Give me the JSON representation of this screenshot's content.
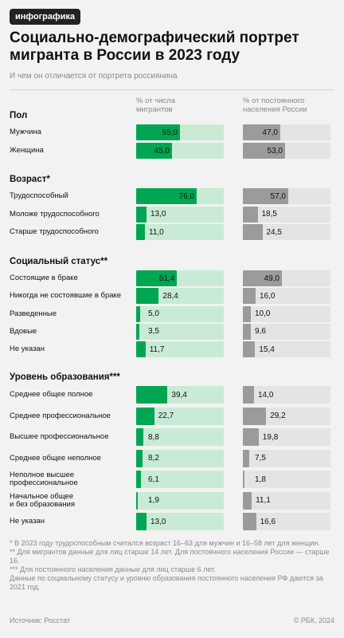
{
  "badge": "инфографика",
  "title": "Социально-демографический портрет мигранта в России в 2023 году",
  "subtitle": "И чем он отличается от портрета россиянина",
  "columns": [
    {
      "name": "% от числа мигрантов",
      "color": "#00a651",
      "background": "#c9ebd6"
    },
    {
      "name": "% от постоянного населения России",
      "color": "#9b9b9b",
      "background": "#e4e4e4"
    }
  ],
  "chart_data": [
    {
      "type": "bar",
      "title": "Пол",
      "categories": [
        "Мужчина",
        "Женщина"
      ],
      "xlim": [
        0,
        100
      ],
      "series": [
        {
          "values": [
            55,
            45
          ],
          "value_labels": [
            "55,0",
            "45,0"
          ]
        },
        {
          "values": [
            47,
            53
          ],
          "value_labels": [
            "47,0",
            "53,0"
          ]
        }
      ]
    },
    {
      "type": "bar",
      "title": "Возраст*",
      "categories": [
        "Трудоспособный",
        "Моложе трудоспособного",
        "Старше трудоспособного"
      ],
      "xlim": [
        0,
        100
      ],
      "series": [
        {
          "values": [
            76,
            13,
            11
          ],
          "value_labels": [
            "76,0",
            "13,0",
            "11,0"
          ]
        },
        {
          "values": [
            57,
            18.5,
            24.5
          ],
          "value_labels": [
            "57,0",
            "18,5",
            "24,5"
          ]
        }
      ]
    },
    {
      "type": "bar",
      "title": "Социальный статус**",
      "categories": [
        "Состоящие в браке",
        "Никогда не состоявшие в браке",
        "Разведенные",
        "Вдовые",
        "Не указан"
      ],
      "xlim": [
        0,
        100
      ],
      "series": [
        {
          "values": [
            51.4,
            28.4,
            5,
            3.5,
            11.7
          ],
          "value_labels": [
            "51,4",
            "28,4",
            "5,0",
            "3,5",
            "11,7"
          ]
        },
        {
          "values": [
            49,
            16,
            10,
            9.6,
            15.4
          ],
          "value_labels": [
            "49,0",
            "16,0",
            "10,0",
            "9,6",
            "15,4"
          ]
        }
      ]
    },
    {
      "type": "bar",
      "title": "Уровень образования***",
      "categories": [
        "Среднее общее полное",
        "Среднее профессиональное",
        "Высшее профессиональное",
        "Среднее общее неполное",
        "Неполное высшее\nпрофессиональное",
        "Начальное общее\nи без образования",
        "Не указан"
      ],
      "xlim": [
        0,
        100
      ],
      "series": [
        {
          "values": [
            39.4,
            22.7,
            8.8,
            8.2,
            6.1,
            1.9,
            13
          ],
          "value_labels": [
            "39,4",
            "22,7",
            "8,8",
            "8,2",
            "6,1",
            "1,9",
            "13,0"
          ]
        },
        {
          "values": [
            14,
            29.2,
            19.8,
            7.5,
            1.8,
            11.1,
            16.6
          ],
          "value_labels": [
            "14,0",
            "29,2",
            "19,8",
            "7,5",
            "1,8",
            "11,1",
            "16,6"
          ]
        }
      ]
    }
  ],
  "footnotes": [
    "* В 2023 году трудоспособным считался возраст 16–63 для мужчин и 16–58 лет для женщин.",
    "** Для мигрантов данные для лиц старше 14 лет. Для постоянного населения России — старше 16.",
    "*** Для постоянного населения данные для лиц старше 6 лет.",
    "Данные по социальному статусу и уровню образования постоянного населения РФ даются за 2021 год."
  ],
  "source": "Источник: Росстат",
  "copyright": "© РБК, 2024"
}
